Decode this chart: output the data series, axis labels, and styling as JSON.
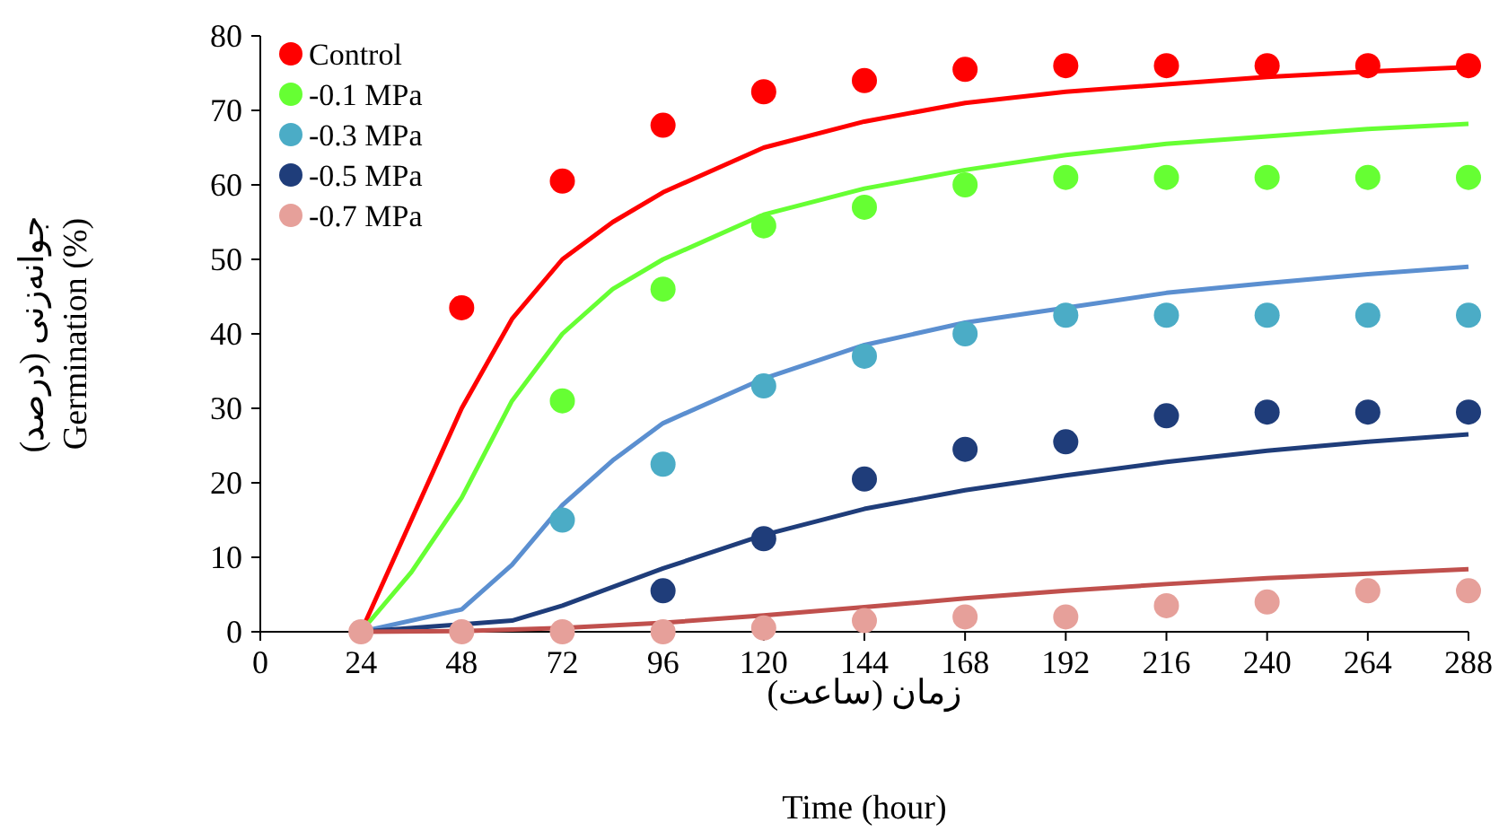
{
  "chart_data": {
    "type": "scatter",
    "xlabel": "زمان (ساعت)\nTime (hour)",
    "ylabel": "جوانه‌زنی (درصد)\nGermination (%)",
    "xlim": [
      0,
      288
    ],
    "xticks": [
      0,
      24,
      48,
      72,
      96,
      120,
      144,
      168,
      192,
      216,
      240,
      264,
      288
    ],
    "ylim": [
      0,
      80
    ],
    "yticks": [
      0,
      10,
      20,
      30,
      40,
      50,
      60,
      70,
      80
    ],
    "grid": false,
    "legend": "top left",
    "series": [
      {
        "type": "line",
        "color": "#ff0000",
        "x": [
          24,
          36,
          48,
          60,
          72,
          84,
          96,
          120,
          144,
          168,
          192,
          216,
          240,
          264,
          288
        ],
        "values": [
          0,
          15,
          30,
          42,
          50,
          55,
          59,
          65,
          68.5,
          71,
          72.5,
          73.5,
          74.5,
          75.2,
          75.8
        ]
      },
      {
        "type": "line",
        "color": "#66ff33",
        "x": [
          24,
          36,
          48,
          60,
          72,
          84,
          96,
          120,
          144,
          168,
          192,
          216,
          240,
          264,
          288
        ],
        "values": [
          0,
          8,
          18,
          31,
          40,
          46,
          50,
          56,
          59.5,
          62,
          64,
          65.5,
          66.5,
          67.5,
          68.2
        ]
      },
      {
        "type": "line",
        "color": "#5b8fd0",
        "x": [
          24,
          48,
          60,
          72,
          84,
          96,
          120,
          144,
          168,
          192,
          216,
          240,
          264,
          288
        ],
        "values": [
          0,
          3,
          9,
          17,
          23,
          28,
          34,
          38.5,
          41.5,
          43.5,
          45.5,
          46.8,
          48,
          49
        ]
      },
      {
        "type": "line",
        "color": "#1f3d7a",
        "x": [
          24,
          60,
          72,
          96,
          120,
          144,
          168,
          192,
          216,
          240,
          264,
          288
        ],
        "values": [
          0,
          1.5,
          3.5,
          8.5,
          13,
          16.5,
          19,
          21,
          22.8,
          24.3,
          25.5,
          26.5
        ]
      },
      {
        "type": "line",
        "color": "#c0504d",
        "x": [
          24,
          48,
          72,
          96,
          120,
          144,
          168,
          192,
          216,
          240,
          264,
          288
        ],
        "values": [
          0,
          0.1,
          0.5,
          1.2,
          2.2,
          3.3,
          4.5,
          5.5,
          6.4,
          7.2,
          7.8,
          8.4
        ]
      },
      {
        "type": "scatter",
        "name": "Control",
        "marker": "circle",
        "color": "#ff0000",
        "x": [
          48,
          72,
          96,
          120,
          144,
          168,
          192,
          216,
          240,
          264,
          288
        ],
        "values": [
          43.5,
          60.5,
          68,
          72.5,
          74,
          75.5,
          76,
          76,
          76,
          76,
          76
        ]
      },
      {
        "type": "scatter",
        "name": "-0.1 MPa",
        "marker": "circle",
        "color": "#66ff33",
        "x": [
          72,
          96,
          120,
          144,
          168,
          192,
          216,
          240,
          264,
          288
        ],
        "values": [
          31,
          46,
          54.5,
          57,
          60,
          61,
          61,
          61,
          61,
          61
        ]
      },
      {
        "type": "scatter",
        "name": "-0.3 MPa",
        "marker": "circle",
        "color": "#4bacc6",
        "x": [
          72,
          96,
          120,
          144,
          168,
          192,
          216,
          240,
          264,
          288
        ],
        "values": [
          15,
          22.5,
          33,
          37,
          40,
          42.5,
          42.5,
          42.5,
          42.5,
          42.5
        ]
      },
      {
        "type": "scatter",
        "name": "-0.5 MPa",
        "marker": "circle",
        "color": "#1f3d7a",
        "x": [
          96,
          120,
          144,
          168,
          192,
          216,
          240,
          264,
          288
        ],
        "values": [
          5.5,
          12.5,
          20.5,
          24.5,
          25.5,
          29,
          29.5,
          29.5,
          29.5
        ]
      },
      {
        "type": "scatter",
        "name": "-0.7 MPa",
        "marker": "circle",
        "color": "#e6a09a",
        "x": [
          24,
          48,
          72,
          96,
          120,
          144,
          168,
          192,
          216,
          240,
          264,
          288
        ],
        "values": [
          0,
          0,
          0,
          0,
          0.5,
          1.5,
          2,
          2,
          3.5,
          4,
          5.5,
          5.5
        ]
      }
    ]
  }
}
